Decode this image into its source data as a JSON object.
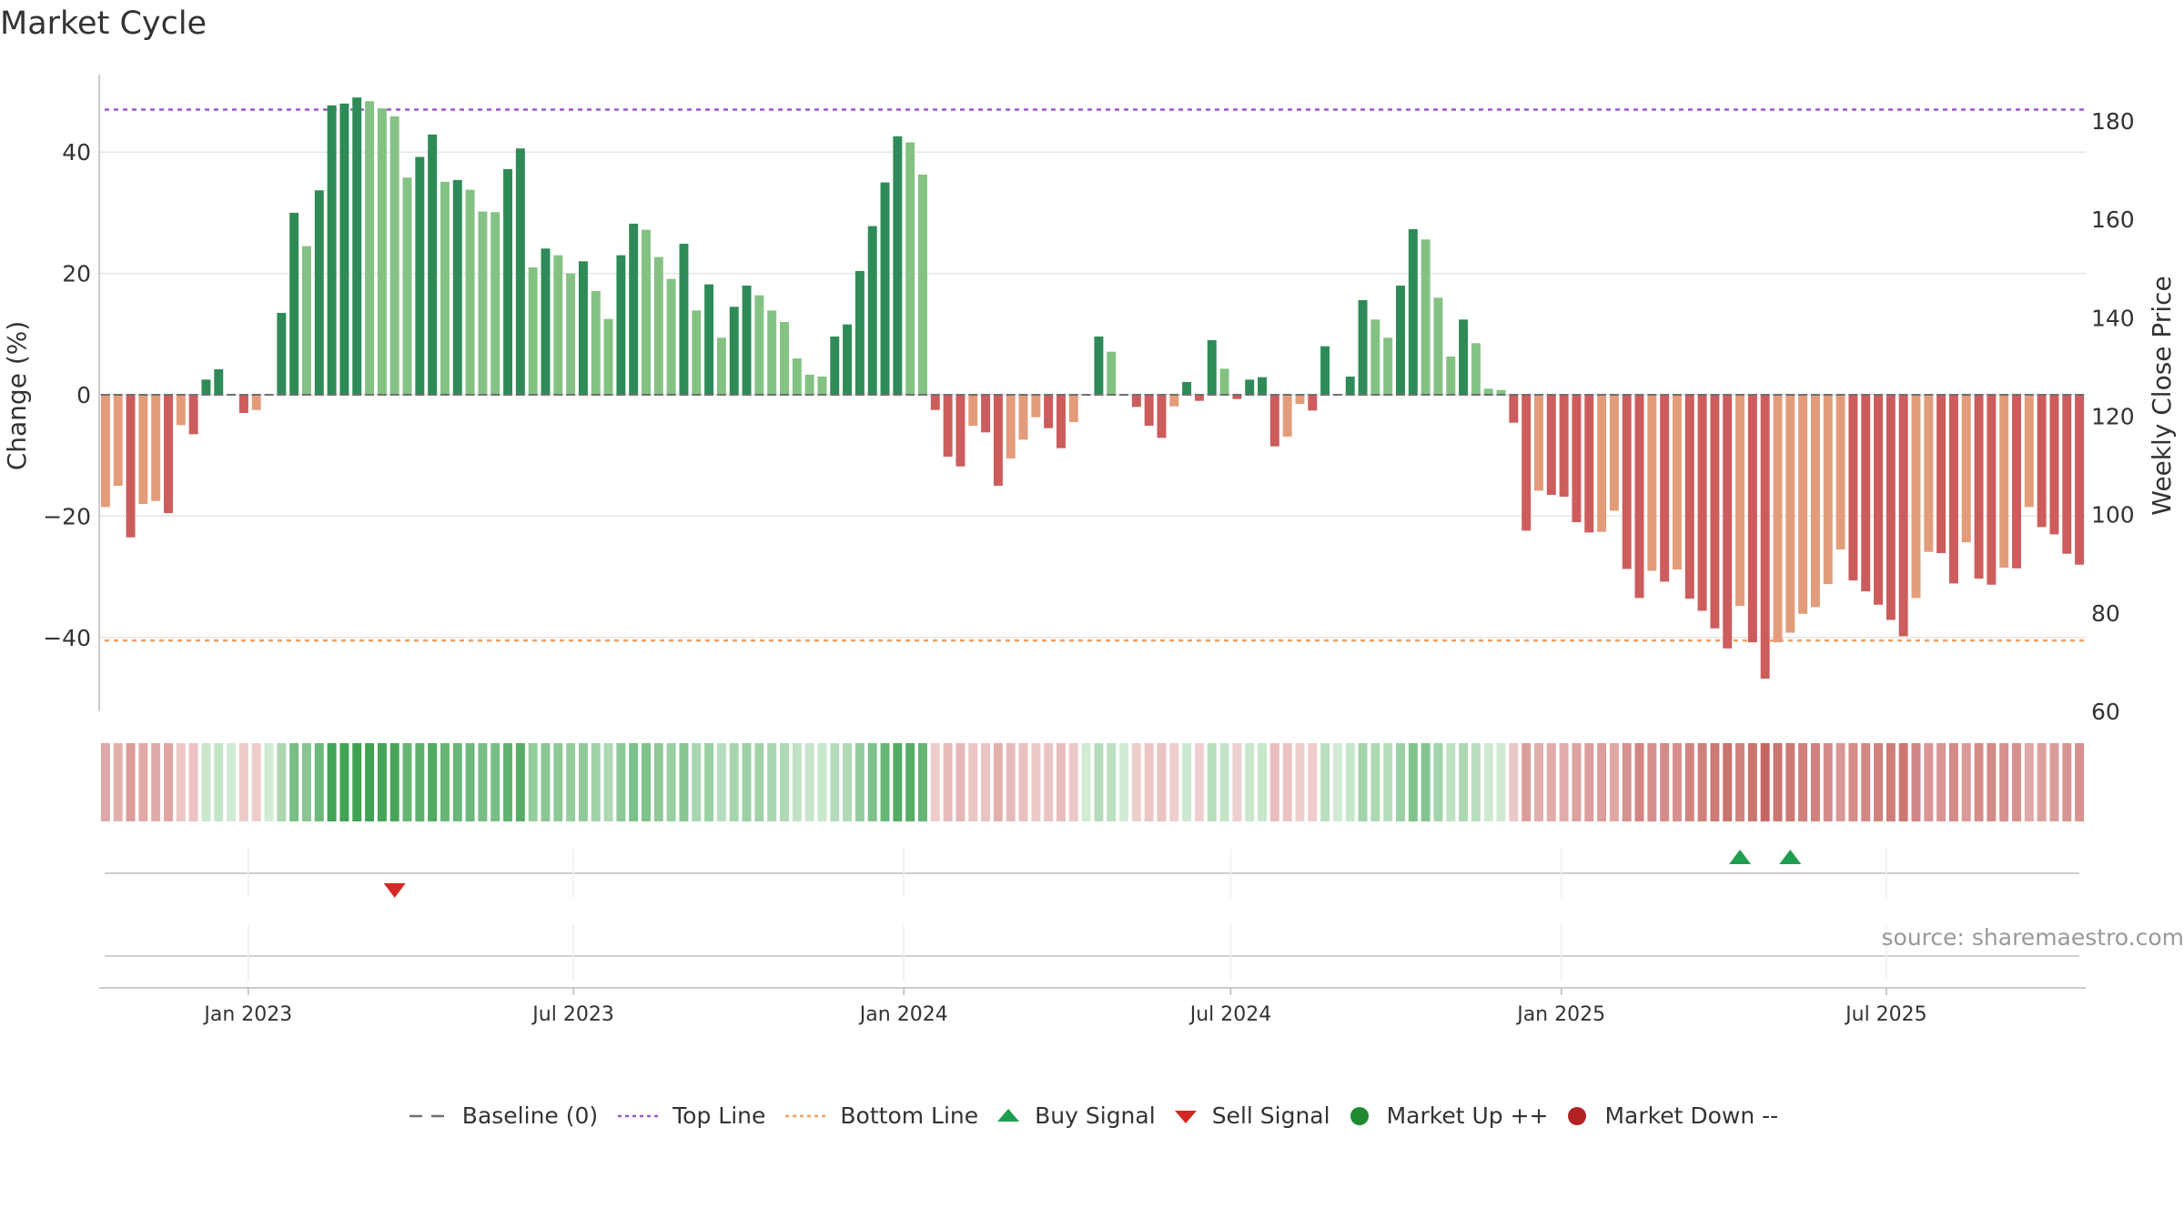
{
  "title": "Market Cycle",
  "source_text": "source: sharemaestro.com",
  "legend": [
    {
      "key": "baseline",
      "label": "Baseline (0)",
      "icon": "dash-line-icon",
      "color": "#707070"
    },
    {
      "key": "top",
      "label": "Top Line",
      "icon": "dotted-line-icon",
      "color": "#9b59d0"
    },
    {
      "key": "bottom",
      "label": "Bottom Line",
      "icon": "dotted-line-icon",
      "color": "#f0a060"
    },
    {
      "key": "buy",
      "label": "Buy Signal",
      "icon": "triangle-up-icon",
      "color": "#1e9e50"
    },
    {
      "key": "sell",
      "label": "Sell Signal",
      "icon": "triangle-down-icon",
      "color": "#d62728"
    },
    {
      "key": "up",
      "label": "Market Up ++",
      "icon": "circle-icon",
      "color": "#1f8a2e"
    },
    {
      "key": "down",
      "label": "Market Down --",
      "icon": "circle-icon",
      "color": "#b22222"
    }
  ],
  "chart_data": {
    "type": "bar",
    "ylabel": "Change (%)",
    "y2label": "Weekly Close Price",
    "ylim": [
      -53,
      53
    ],
    "yticks": [
      -40,
      -20,
      0,
      20,
      40
    ],
    "y2lim": [
      60,
      190
    ],
    "y2ticks": [
      60,
      80,
      100,
      120,
      140,
      160,
      180
    ],
    "top_line": 47,
    "bottom_line": -40.5,
    "x_start": "2022-10-10",
    "x_end": "2025-10-20",
    "xticks": [
      {
        "date": "2023-01-01",
        "label": "Jan 2023"
      },
      {
        "date": "2023-07-01",
        "label": "Jul 2023"
      },
      {
        "date": "2024-01-01",
        "label": "Jan 2024"
      },
      {
        "date": "2024-07-01",
        "label": "Jul 2024"
      },
      {
        "date": "2025-01-01",
        "label": "Jan 2025"
      },
      {
        "date": "2025-07-01",
        "label": "Jul 2025"
      }
    ],
    "values": [
      -18.5,
      -15,
      -23.5,
      -18,
      -17.5,
      -19.5,
      -5,
      -6.5,
      2.5,
      4.2,
      0,
      -3,
      -2.5,
      0,
      13.5,
      30,
      24.5,
      33.7,
      47.7,
      48,
      49,
      48.4,
      47.2,
      45.9,
      35.8,
      39.2,
      42.9,
      35.1,
      35.4,
      33.8,
      30.2,
      30.1,
      37.2,
      40.6,
      21,
      24.1,
      23,
      20,
      22,
      17.1,
      12.5,
      23,
      28.2,
      27.2,
      22.7,
      19.1,
      24.9,
      13.9,
      18.2,
      9.4,
      14.5,
      18,
      16.4,
      13.9,
      12,
      6,
      3.3,
      3,
      9.6,
      11.6,
      20.4,
      27.8,
      35,
      42.6,
      41.6,
      36.3,
      -2.5,
      -10.2,
      -11.8,
      -5.1,
      -6.2,
      -15,
      -10.5,
      -7.4,
      -3.7,
      -5.5,
      -8.8,
      -4.5,
      0,
      9.6,
      7.1,
      0,
      -2,
      -5.1,
      -7.1,
      -1.9,
      2.1,
      -1,
      9,
      4.3,
      -0.7,
      2.5,
      2.9,
      -8.5,
      -6.9,
      -1.5,
      -2.6,
      8,
      0,
      3,
      15.6,
      12.4,
      9.4,
      18,
      27.3,
      25.6,
      16,
      6.3,
      12.4,
      8.5,
      1,
      0.8,
      -4.6,
      -22.4,
      -15.8,
      -16.5,
      -16.8,
      -21,
      -22.7,
      -22.6,
      -19.1,
      -28.7,
      -33.5,
      -29,
      -30.8,
      -28.8,
      -33.6,
      -35.6,
      -38.5,
      -41.8,
      -34.8,
      -40.8,
      -46.8,
      -40.8,
      -39.2,
      -36.1,
      -35,
      -31.2,
      -25.5,
      -30.6,
      -32.4,
      -34.6,
      -37.1,
      -39.8,
      -33.5,
      -25.9,
      -26.1,
      -31.1,
      -24.3,
      -30.3,
      -31.3,
      -28.5,
      -28.6,
      -18.5,
      -21.8,
      -23,
      -26.2,
      -28
    ]
  }
}
